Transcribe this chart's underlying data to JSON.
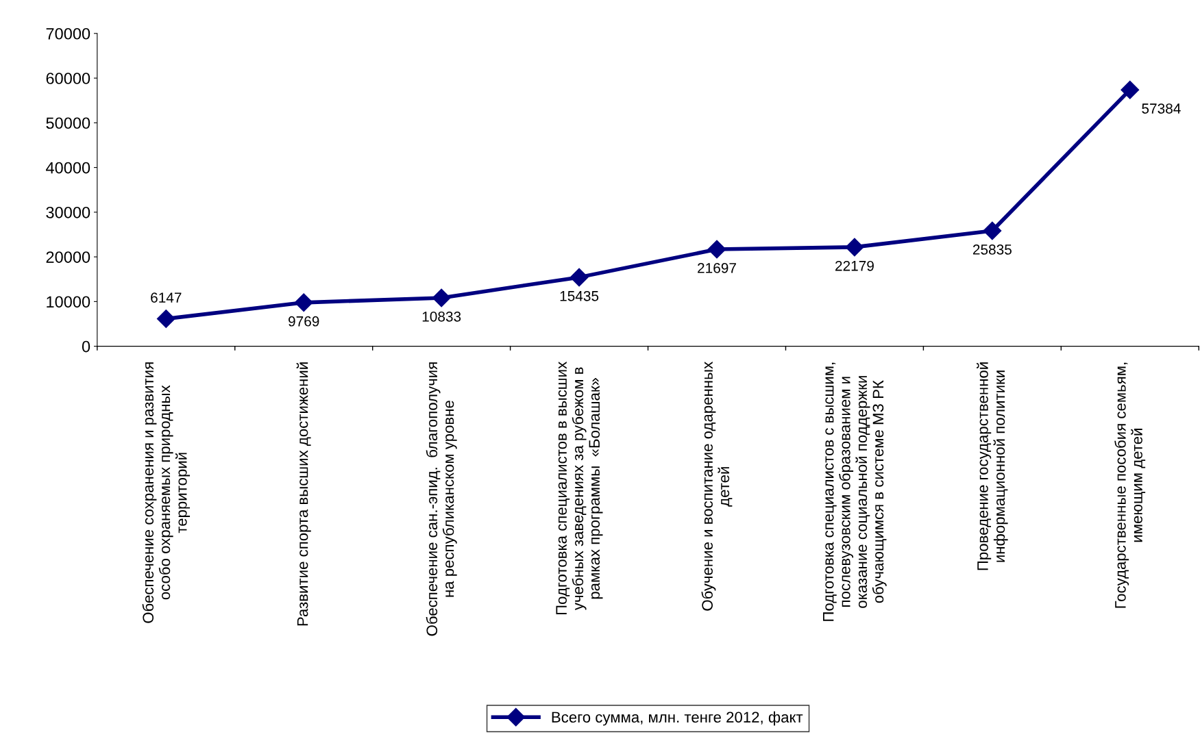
{
  "chart_data": {
    "type": "line",
    "categories": [
      "Обеспечение сохранения и развития\nособо охраняемых природных\nтерриторий",
      "Развитие спорта высших достижений",
      "Обеспечение сан.-эпид.  благополучия\nна республиканском уровне",
      "Подготовка специалистов в высших\nучебных заведениях за рубежом в\nрамках программы  «Болашак»",
      "Обучение и воспитание одаренных\nдетей",
      "Подготовка специалистов с высшим,\nпослевузовским образованием и\nоказание социальной поддержки\nобучающимся в системе МЗ РК",
      "Проведение государственной\nинформационной политики",
      "Государственные пособия семьям,\nимеющим детей"
    ],
    "series": [
      {
        "name": "Всего сумма, млн. тенге 2012, факт",
        "color": "#000080",
        "values": [
          6147,
          9769,
          10833,
          15435,
          21697,
          22179,
          25835,
          57384
        ]
      }
    ],
    "ylim": [
      0,
      70000
    ],
    "yticks": [
      0,
      10000,
      20000,
      30000,
      40000,
      50000,
      60000,
      70000
    ],
    "data_labels": true,
    "marker": "diamond",
    "line_style": "solid",
    "grid": false,
    "legend": "bottom"
  }
}
